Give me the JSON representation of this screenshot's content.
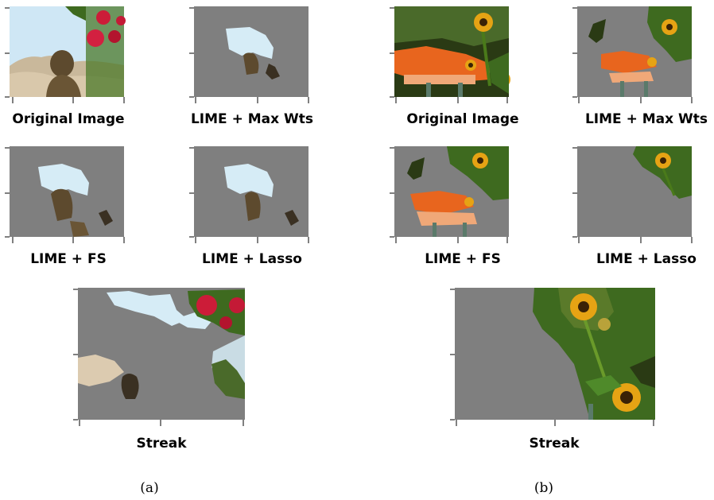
{
  "captions": {
    "original": "Original Image",
    "max_wts": "LIME + Max Wts",
    "fs": "LIME + FS",
    "lasso": "LIME + Lasso",
    "streak": "Streak"
  },
  "subfigures": {
    "a": "(a)",
    "b": "(b)"
  },
  "colors": {
    "mask_gray": "#7f7f7f",
    "sky": "#d6ecf6",
    "rose": "#d01d3a",
    "leaf": "#3e6a1f",
    "sunflower": "#e6a314",
    "sunflower_center": "#3a2206",
    "orange_flowers": "#e8651e",
    "statue": "#6a5a3e",
    "sand": "#dccbb0",
    "dark_foliage": "#2a3a14"
  }
}
